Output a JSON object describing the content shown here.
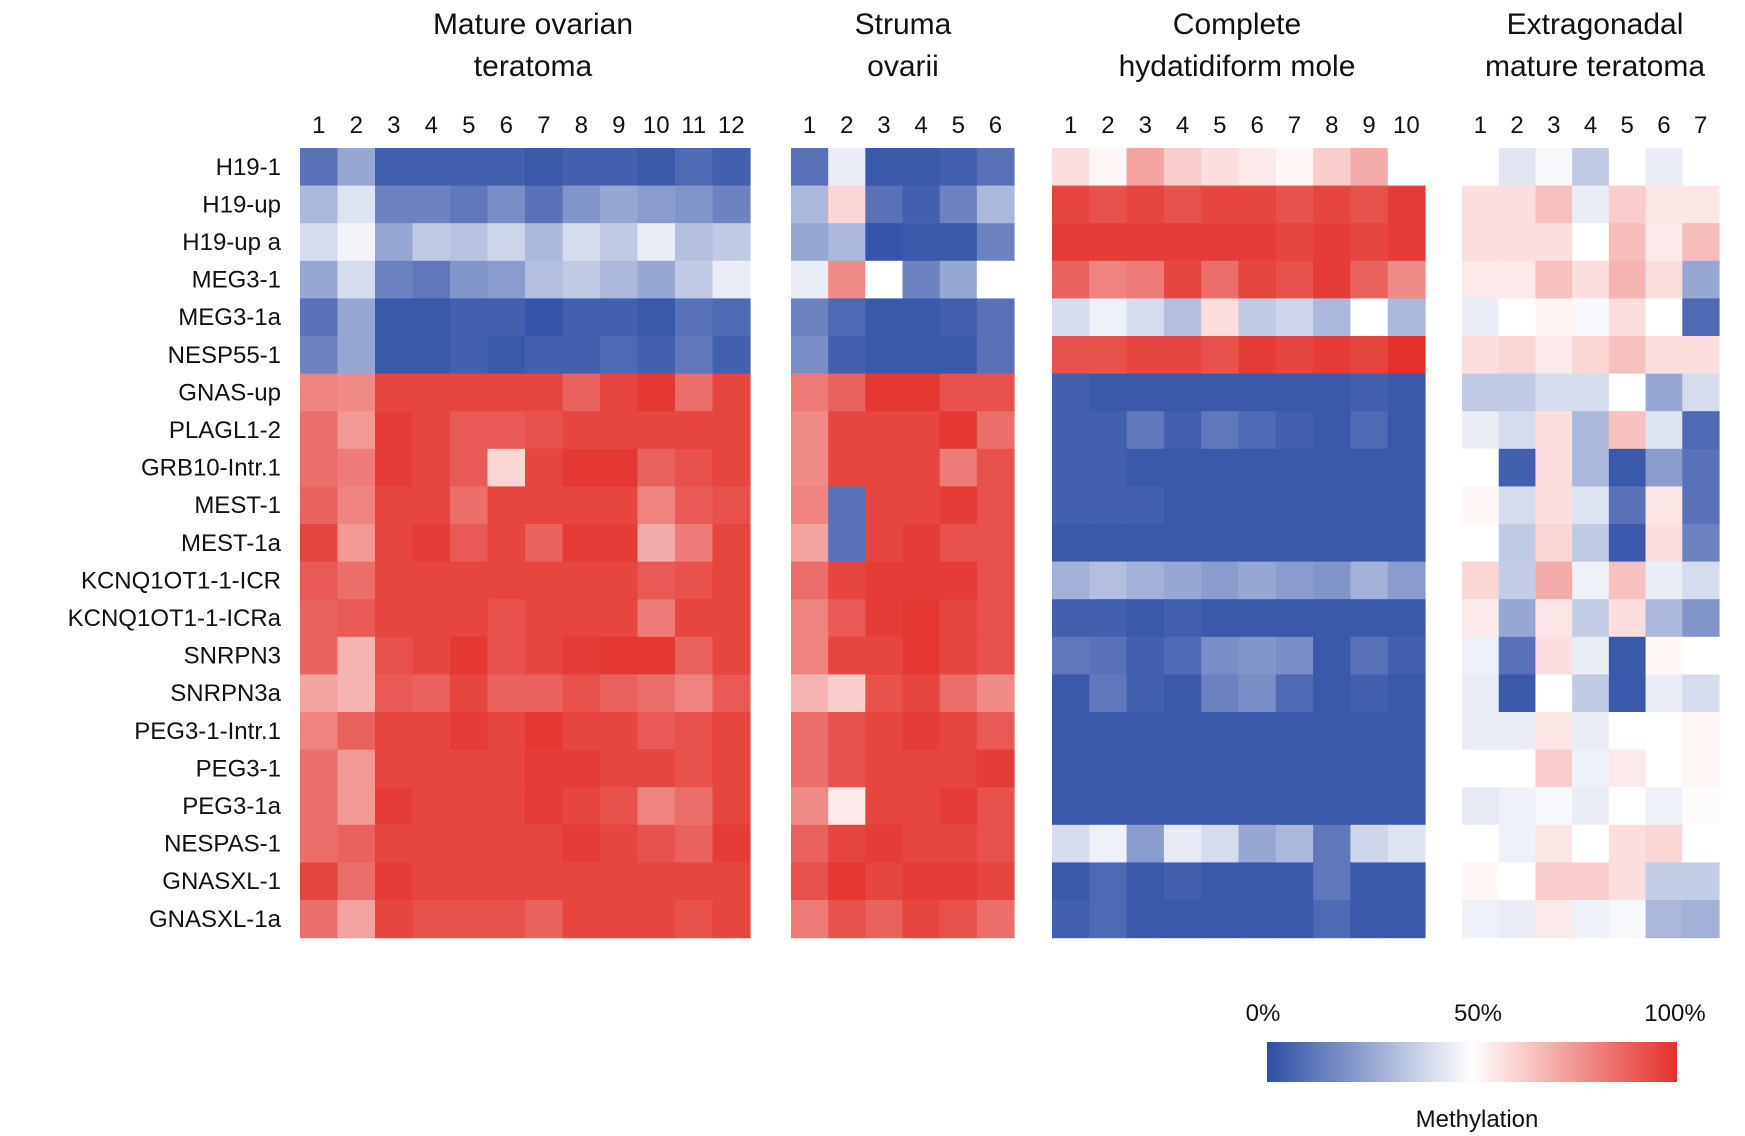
{
  "chart_data": {
    "type": "heatmap",
    "value_unit": "% methylation",
    "rows": [
      "H19-1",
      "H19-up",
      "H19-up a",
      "MEG3-1",
      "MEG3-1a",
      "NESP55-1",
      "GNAS-up",
      "PLAGL1-2",
      "GRB10-Intr.1",
      "MEST-1",
      "MEST-1a",
      "KCNQ1OT1-1-ICR",
      "KCNQ1OT1-1-ICRa",
      "SNRPN3",
      "SNRPN3a",
      "PEG3-1-Intr.1",
      "PEG3-1",
      "PEG3-1a",
      "NESPAS-1",
      "GNASXL-1",
      "GNASXL-1a"
    ],
    "colorscale": {
      "low": "#2e4ea6",
      "mid": "#ffffff",
      "high": "#e4302a",
      "range": [
        0,
        100
      ]
    },
    "legend": {
      "title": "Methylation",
      "tick_labels": [
        "0%",
        "50%",
        "100%"
      ]
    },
    "groups": [
      {
        "title_lines": [
          "Mature ovarian",
          "teratoma"
        ],
        "samples": [
          "1",
          "2",
          "3",
          "4",
          "5",
          "6",
          "7",
          "8",
          "9",
          "10",
          "11",
          "12"
        ],
        "values": [
          [
            10,
            25,
            5,
            5,
            5,
            5,
            3,
            5,
            5,
            3,
            8,
            5
          ],
          [
            30,
            42,
            15,
            15,
            12,
            18,
            10,
            20,
            25,
            22,
            20,
            15
          ],
          [
            40,
            47,
            25,
            35,
            33,
            38,
            30,
            40,
            35,
            45,
            32,
            35
          ],
          [
            25,
            40,
            15,
            12,
            20,
            22,
            32,
            35,
            30,
            25,
            35,
            45
          ],
          [
            10,
            25,
            3,
            3,
            5,
            5,
            2,
            5,
            5,
            3,
            10,
            8
          ],
          [
            15,
            25,
            3,
            3,
            5,
            3,
            5,
            5,
            8,
            5,
            12,
            5
          ],
          [
            80,
            78,
            95,
            95,
            95,
            95,
            95,
            88,
            95,
            98,
            85,
            95
          ],
          [
            85,
            75,
            97,
            95,
            90,
            90,
            92,
            95,
            95,
            95,
            95,
            95
          ],
          [
            85,
            82,
            97,
            95,
            90,
            60,
            95,
            98,
            98,
            88,
            92,
            95
          ],
          [
            88,
            80,
            95,
            95,
            85,
            95,
            95,
            95,
            95,
            80,
            90,
            92
          ],
          [
            95,
            75,
            95,
            97,
            90,
            95,
            88,
            97,
            97,
            70,
            82,
            95
          ],
          [
            90,
            85,
            95,
            95,
            95,
            95,
            95,
            95,
            95,
            90,
            92,
            95
          ],
          [
            88,
            90,
            95,
            95,
            95,
            92,
            95,
            95,
            95,
            82,
            95,
            95
          ],
          [
            88,
            68,
            92,
            95,
            98,
            92,
            95,
            97,
            98,
            98,
            88,
            95
          ],
          [
            72,
            68,
            90,
            88,
            95,
            88,
            88,
            92,
            88,
            85,
            80,
            90
          ],
          [
            80,
            88,
            95,
            95,
            97,
            95,
            98,
            95,
            95,
            90,
            92,
            95
          ],
          [
            85,
            75,
            95,
            95,
            95,
            95,
            97,
            97,
            95,
            95,
            92,
            95
          ],
          [
            85,
            75,
            97,
            95,
            95,
            95,
            97,
            95,
            92,
            80,
            85,
            95
          ],
          [
            85,
            88,
            95,
            95,
            95,
            95,
            95,
            97,
            95,
            92,
            88,
            97
          ],
          [
            95,
            85,
            97,
            95,
            95,
            95,
            95,
            95,
            95,
            95,
            95,
            95
          ],
          [
            85,
            72,
            95,
            92,
            92,
            92,
            88,
            95,
            95,
            95,
            92,
            95
          ]
        ]
      },
      {
        "title_lines": [
          "Struma",
          "ovarii"
        ],
        "samples": [
          "1",
          "2",
          "3",
          "4",
          "5",
          "6"
        ],
        "values": [
          [
            10,
            45,
            3,
            3,
            5,
            10
          ],
          [
            30,
            60,
            10,
            5,
            15,
            30
          ],
          [
            25,
            30,
            2,
            3,
            3,
            15
          ],
          [
            45,
            78,
            50,
            15,
            25,
            50
          ],
          [
            15,
            8,
            3,
            3,
            5,
            10
          ],
          [
            18,
            5,
            3,
            3,
            3,
            10
          ],
          [
            82,
            88,
            98,
            98,
            92,
            92
          ],
          [
            78,
            95,
            95,
            95,
            98,
            85
          ],
          [
            78,
            95,
            95,
            95,
            82,
            92
          ],
          [
            80,
            10,
            95,
            95,
            97,
            92
          ],
          [
            72,
            10,
            95,
            97,
            92,
            92
          ],
          [
            85,
            95,
            97,
            97,
            97,
            92
          ],
          [
            80,
            90,
            97,
            98,
            95,
            92
          ],
          [
            80,
            95,
            95,
            98,
            95,
            92
          ],
          [
            68,
            62,
            92,
            95,
            85,
            78
          ],
          [
            85,
            92,
            95,
            97,
            95,
            90
          ],
          [
            85,
            92,
            95,
            95,
            95,
            97
          ],
          [
            78,
            55,
            95,
            95,
            97,
            92
          ],
          [
            88,
            95,
            97,
            95,
            95,
            92
          ],
          [
            92,
            98,
            95,
            97,
            97,
            95
          ],
          [
            82,
            92,
            88,
            95,
            92,
            85
          ]
        ]
      },
      {
        "title_lines": [
          "Complete",
          "hydatidiform mole"
        ],
        "samples": [
          "1",
          "2",
          "3",
          "4",
          "5",
          "6",
          "7",
          "8",
          "9",
          "10"
        ],
        "values": [
          [
            58,
            52,
            72,
            62,
            58,
            55,
            52,
            62,
            70,
            50
          ],
          [
            95,
            92,
            95,
            92,
            95,
            95,
            92,
            95,
            92,
            97
          ],
          [
            97,
            97,
            97,
            97,
            97,
            97,
            95,
            97,
            95,
            97
          ],
          [
            88,
            80,
            82,
            95,
            85,
            95,
            92,
            97,
            88,
            78
          ],
          [
            40,
            46,
            40,
            32,
            58,
            35,
            38,
            30,
            50,
            30
          ],
          [
            92,
            92,
            95,
            95,
            92,
            97,
            95,
            97,
            95,
            100
          ],
          [
            5,
            3,
            3,
            3,
            3,
            3,
            3,
            3,
            5,
            3
          ],
          [
            5,
            5,
            12,
            5,
            12,
            8,
            5,
            3,
            8,
            3
          ],
          [
            5,
            5,
            3,
            3,
            3,
            3,
            3,
            3,
            3,
            3
          ],
          [
            5,
            5,
            5,
            3,
            3,
            3,
            3,
            3,
            3,
            3
          ],
          [
            3,
            3,
            3,
            3,
            3,
            3,
            3,
            3,
            3,
            3
          ],
          [
            28,
            32,
            28,
            25,
            22,
            25,
            22,
            20,
            28,
            22
          ],
          [
            5,
            5,
            3,
            5,
            3,
            3,
            3,
            3,
            3,
            3
          ],
          [
            12,
            10,
            5,
            8,
            18,
            20,
            18,
            3,
            10,
            5
          ],
          [
            3,
            12,
            5,
            3,
            15,
            18,
            8,
            3,
            5,
            3
          ],
          [
            3,
            3,
            3,
            3,
            3,
            3,
            3,
            3,
            3,
            3
          ],
          [
            3,
            3,
            3,
            3,
            3,
            3,
            3,
            3,
            3,
            3
          ],
          [
            3,
            3,
            3,
            3,
            3,
            3,
            3,
            3,
            3,
            3
          ],
          [
            40,
            46,
            22,
            44,
            40,
            25,
            30,
            12,
            38,
            42
          ],
          [
            3,
            8,
            3,
            5,
            3,
            3,
            3,
            12,
            3,
            3
          ],
          [
            5,
            8,
            3,
            3,
            3,
            3,
            3,
            8,
            3,
            3
          ]
        ]
      },
      {
        "title_lines": [
          "Extragonadal",
          "mature teratoma"
        ],
        "samples": [
          "1",
          "2",
          "3",
          "4",
          "5",
          "6",
          "7"
        ],
        "values": [
          [
            50,
            43,
            48,
            35,
            50,
            45,
            50
          ],
          [
            58,
            58,
            65,
            45,
            62,
            56,
            56
          ],
          [
            58,
            58,
            58,
            50,
            66,
            55,
            66
          ],
          [
            55,
            55,
            65,
            58,
            68,
            58,
            25
          ],
          [
            45,
            50,
            53,
            48,
            58,
            50,
            8
          ],
          [
            58,
            60,
            55,
            60,
            65,
            58,
            58
          ],
          [
            35,
            35,
            40,
            40,
            50,
            25,
            40
          ],
          [
            45,
            40,
            58,
            30,
            65,
            42,
            8
          ],
          [
            50,
            5,
            58,
            30,
            3,
            22,
            10
          ],
          [
            52,
            40,
            58,
            42,
            10,
            56,
            10
          ],
          [
            50,
            35,
            60,
            35,
            3,
            58,
            15
          ],
          [
            60,
            36,
            70,
            46,
            65,
            45,
            40
          ],
          [
            55,
            25,
            56,
            36,
            58,
            30,
            20
          ],
          [
            46,
            10,
            58,
            45,
            3,
            52,
            50
          ],
          [
            45,
            3,
            50,
            35,
            3,
            45,
            40
          ],
          [
            45,
            45,
            56,
            45,
            50,
            50,
            52
          ],
          [
            50,
            50,
            62,
            46,
            55,
            50,
            52
          ],
          [
            44,
            46,
            48,
            45,
            50,
            46,
            51
          ],
          [
            50,
            46,
            56,
            50,
            58,
            60,
            50
          ],
          [
            52,
            50,
            62,
            62,
            58,
            36,
            36
          ],
          [
            46,
            45,
            55,
            46,
            48,
            30,
            28
          ]
        ]
      }
    ]
  }
}
